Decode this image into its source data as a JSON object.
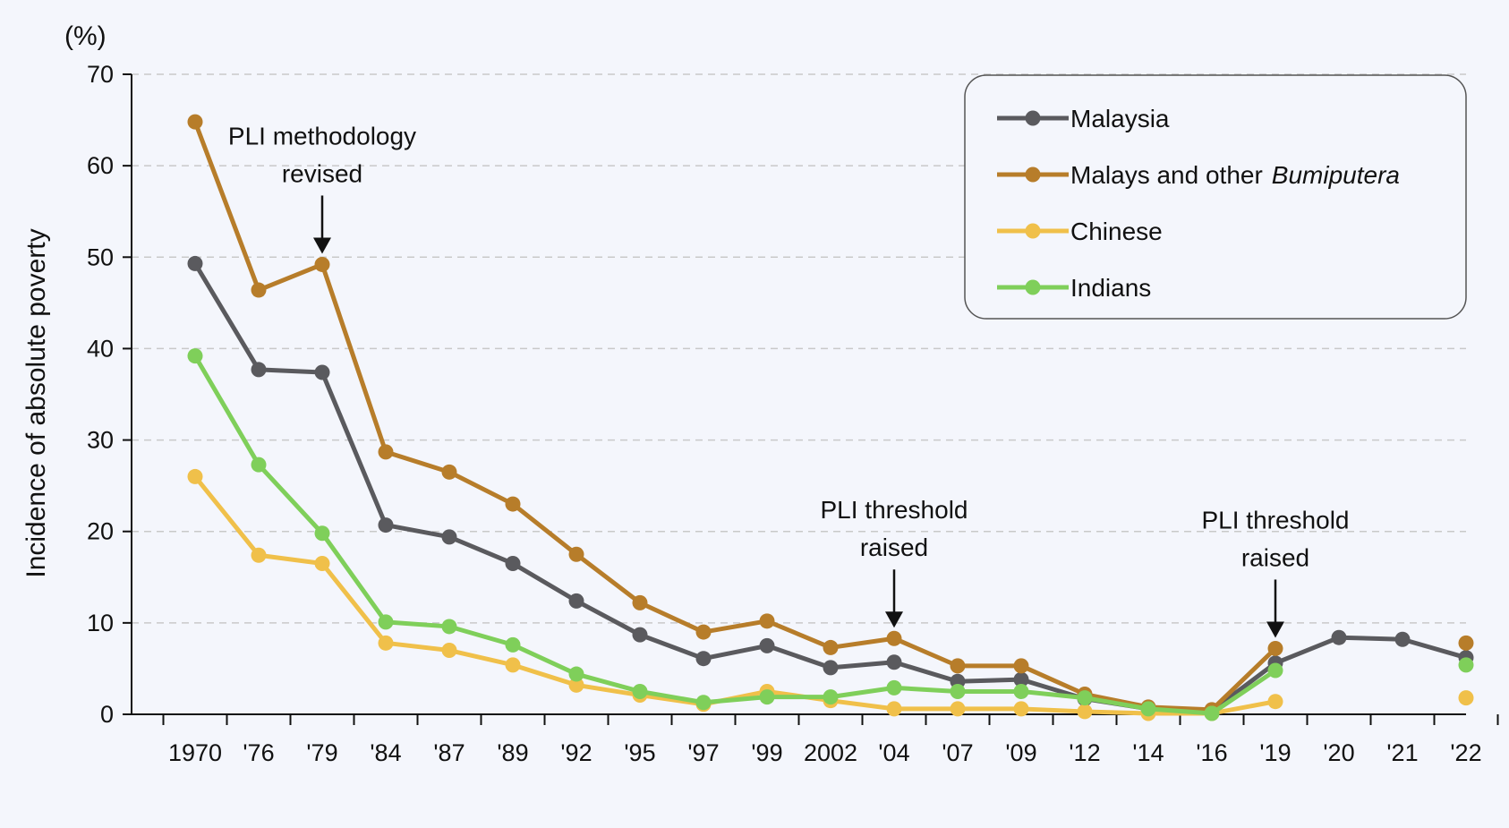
{
  "chart_data": {
    "type": "line",
    "y_unit_label": "(%)",
    "ylabel": "Incidence of absolute poverty",
    "xlabel": "",
    "title": "",
    "ylim": [
      0,
      70
    ],
    "yticks": [
      0,
      10,
      20,
      30,
      40,
      50,
      60,
      70
    ],
    "grid": "horizontal dashed",
    "legend_position": "top-right",
    "categories": [
      "1970",
      "'76",
      "'79",
      "'84",
      "'87",
      "'89",
      "'92",
      "'95",
      "'97",
      "'99",
      "2002",
      "'04",
      "'07",
      "'09",
      "'12",
      "'14",
      "'16",
      "'19",
      "'20",
      "'21",
      "'22"
    ],
    "series": [
      {
        "name": "Malaysia",
        "color": "#5a5a5e",
        "values": [
          49.3,
          37.7,
          37.4,
          20.7,
          19.4,
          16.5,
          12.4,
          8.7,
          6.1,
          7.5,
          5.1,
          5.7,
          3.6,
          3.8,
          1.7,
          0.6,
          0.4,
          5.6,
          8.4,
          8.2,
          6.2
        ]
      },
      {
        "name": "Malays and other",
        "name_italic": "Bumiputera",
        "color": "#b77d2a",
        "values": [
          64.8,
          46.4,
          49.2,
          28.7,
          26.5,
          23.0,
          17.5,
          12.2,
          9.0,
          10.2,
          7.3,
          8.3,
          5.3,
          5.3,
          2.2,
          0.8,
          0.5,
          7.2,
          null,
          null,
          7.8
        ]
      },
      {
        "name": "Chinese",
        "color": "#f0c04a",
        "values": [
          26.0,
          17.4,
          16.5,
          7.8,
          7.0,
          5.4,
          3.2,
          2.1,
          1.1,
          2.5,
          1.5,
          0.6,
          0.6,
          0.6,
          0.3,
          0.1,
          0.1,
          1.4,
          null,
          null,
          1.8
        ]
      },
      {
        "name": "Indians",
        "color": "#7fcf5a",
        "values": [
          39.2,
          27.3,
          19.8,
          10.1,
          9.6,
          7.6,
          4.4,
          2.5,
          1.3,
          1.9,
          1.9,
          2.9,
          2.5,
          2.5,
          1.8,
          0.6,
          0.1,
          4.8,
          null,
          null,
          5.4
        ]
      }
    ],
    "annotations": [
      {
        "lines": [
          "PLI methodology",
          "revised"
        ],
        "category": "'79",
        "target_value": 49.2
      },
      {
        "lines": [
          "PLI threshold",
          "raised"
        ],
        "category": "'04",
        "target_value": 8.3
      },
      {
        "lines": [
          "PLI threshold",
          "raised"
        ],
        "category": "'19",
        "target_value": 7.2
      }
    ]
  }
}
